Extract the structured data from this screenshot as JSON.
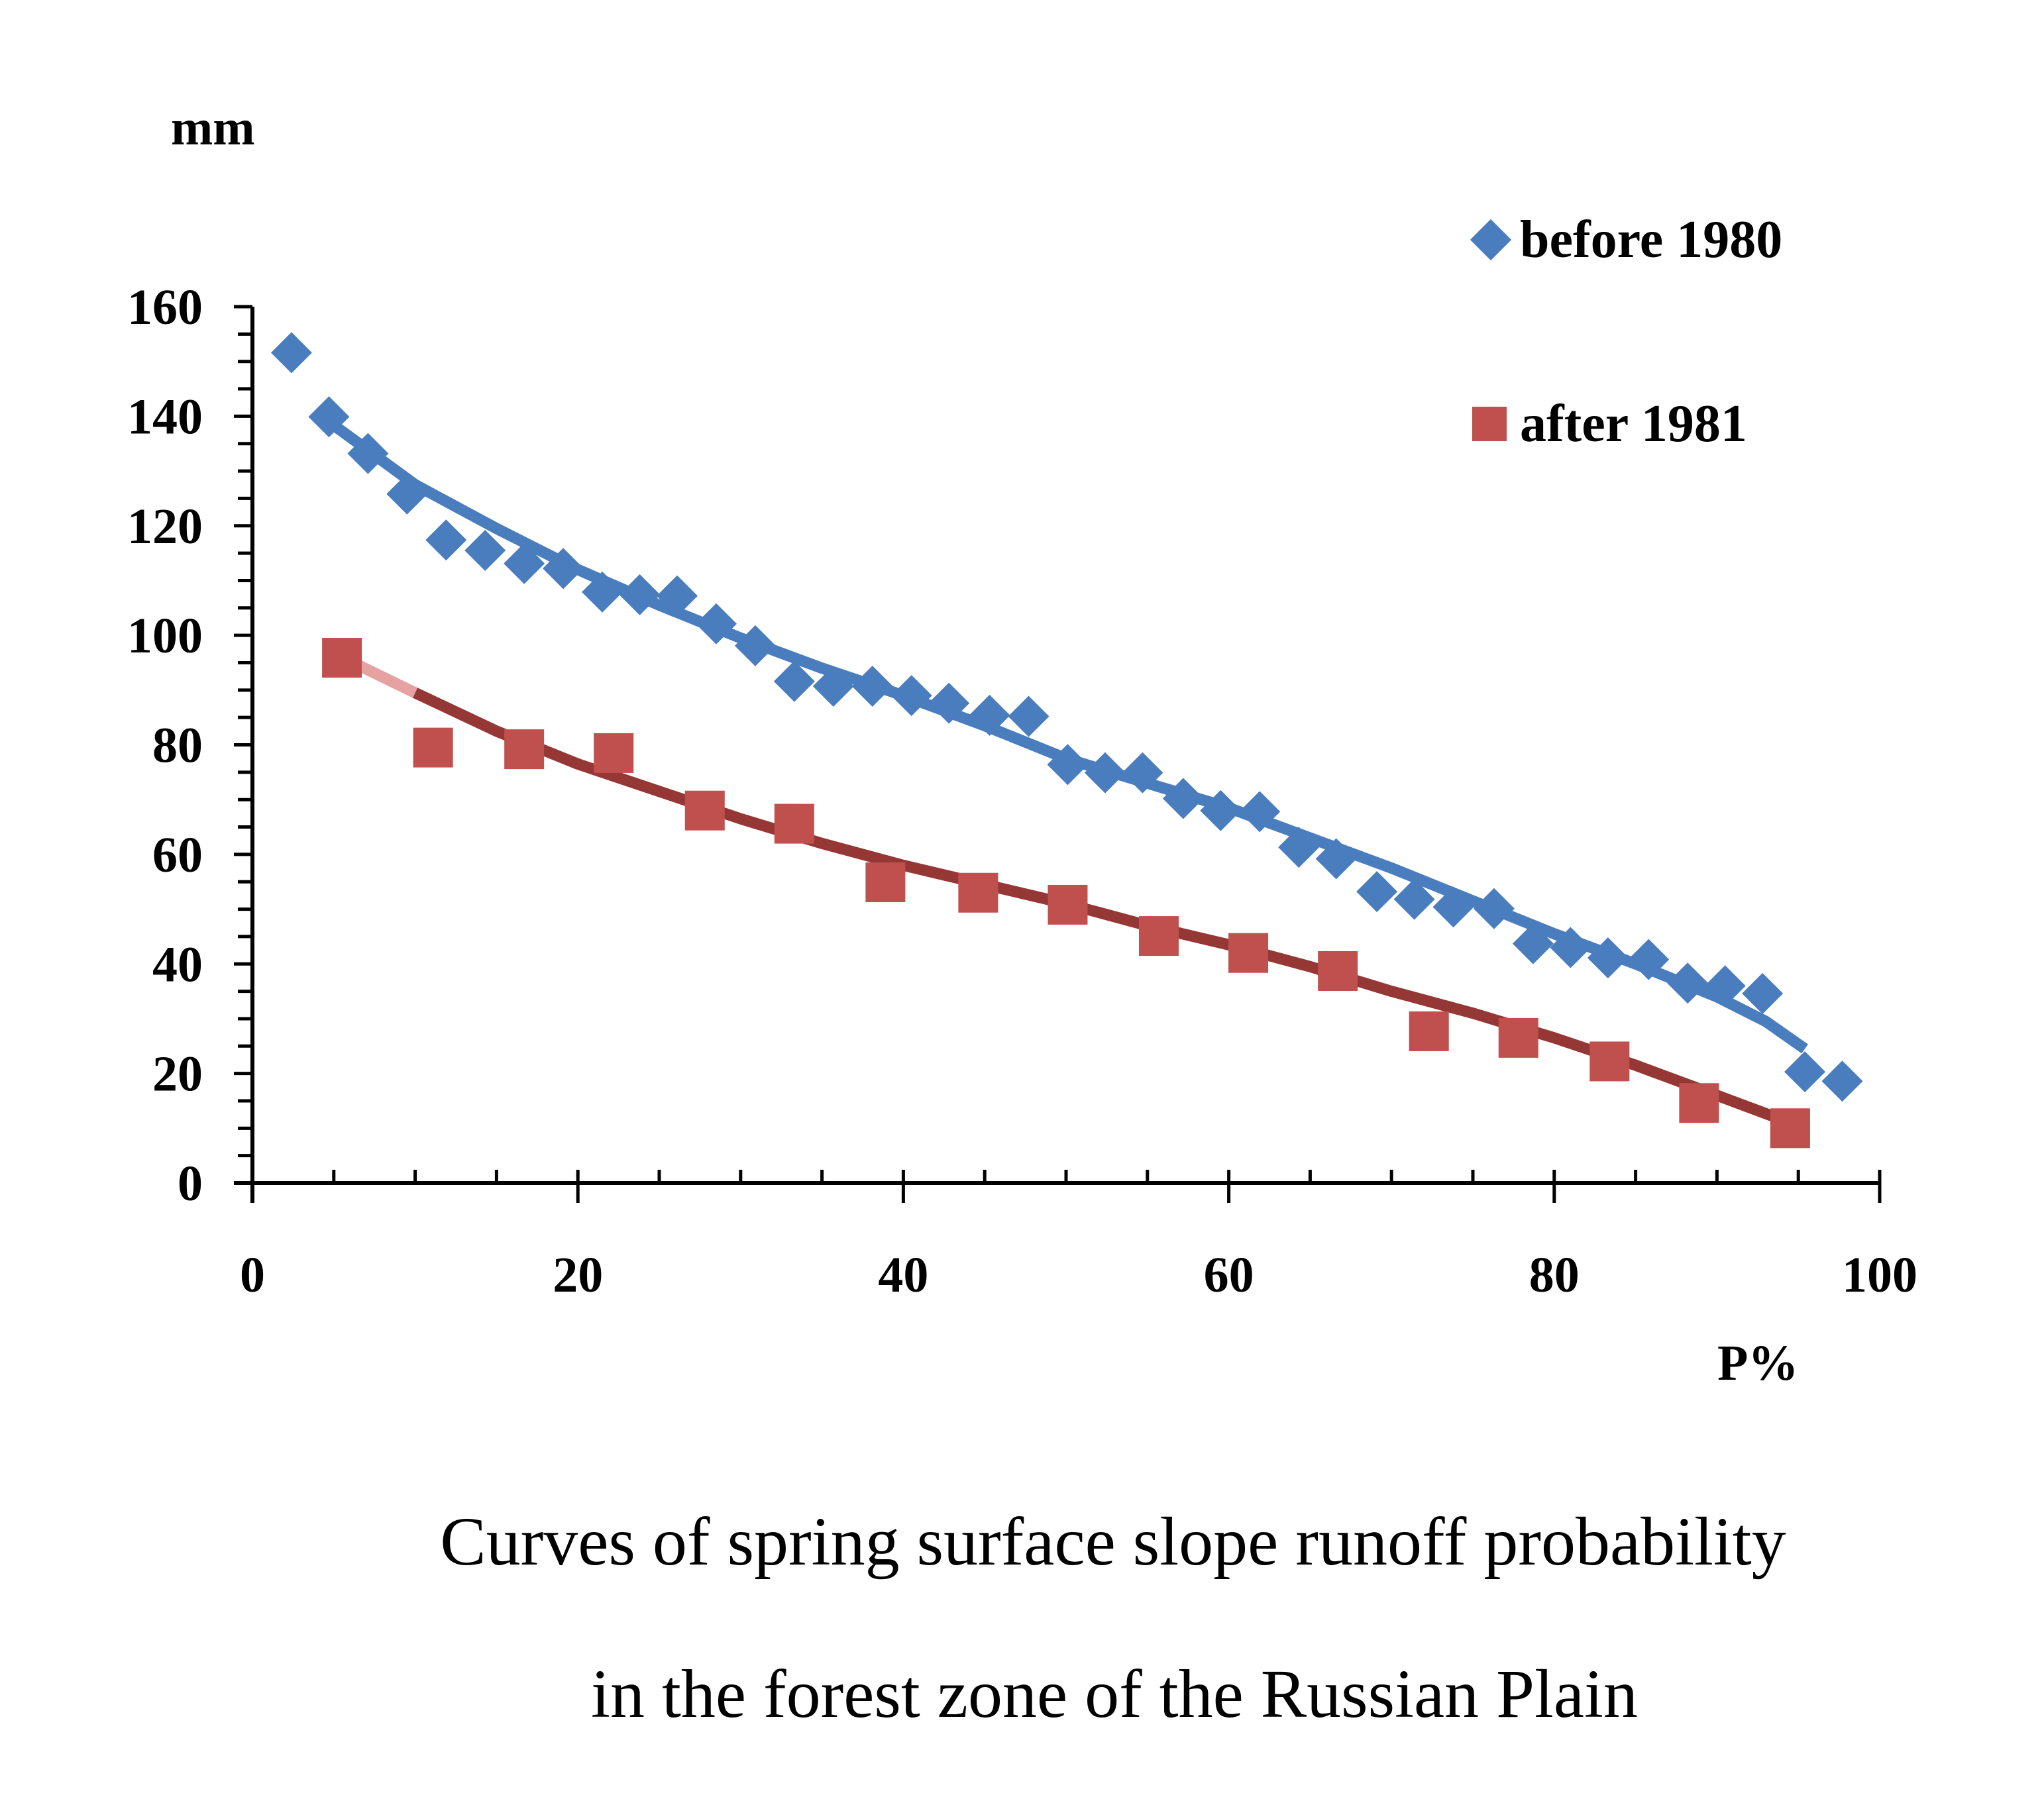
{
  "chart_data": {
    "type": "scatter",
    "title": "Curves of spring surface slope runoff probability in the forest zone of the Russian Plain",
    "caption_lines": [
      "Curves of spring surface slope runoff probability",
      "in the forest zone of the Russian Plain"
    ],
    "xlabel": "P%",
    "ylabel": "mm",
    "xlim": [
      0,
      100
    ],
    "ylim": [
      0,
      160
    ],
    "x_ticks": [
      "0",
      "20",
      "40",
      "60",
      "80",
      "100"
    ],
    "x_tick_values": [
      0,
      20,
      40,
      60,
      80,
      100
    ],
    "y_ticks": [
      "0",
      "20",
      "40",
      "60",
      "80",
      "100",
      "120",
      "140",
      "160"
    ],
    "y_tick_values": [
      0,
      20,
      40,
      60,
      80,
      100,
      120,
      140,
      160
    ],
    "x_minor_step": 5,
    "y_minor_step": 5,
    "grid": false,
    "legend_position": "top-right",
    "series": [
      {
        "name": "before 1980",
        "marker": "diamond",
        "color": "#4a7dbd",
        "x": [
          2.4,
          4.7,
          7.1,
          9.5,
          11.9,
          14.3,
          16.7,
          19.1,
          21.5,
          23.8,
          26.1,
          28.5,
          30.9,
          33.3,
          35.7,
          38.1,
          40.5,
          42.8,
          45.3,
          47.7,
          50.1,
          52.4,
          54.7,
          57.2,
          59.5,
          61.9,
          64.3,
          66.6,
          69.1,
          71.4,
          73.8,
          76.3,
          78.7,
          81.0,
          83.3,
          85.8,
          88.2,
          90.5,
          92.8,
          95.4,
          97.7
        ],
        "y": [
          151.6,
          139.9,
          133.2,
          125.8,
          117.4,
          115.5,
          113.1,
          112.2,
          107.9,
          107.4,
          107.2,
          102.1,
          98.1,
          91.6,
          90.7,
          90.7,
          89.0,
          87.6,
          85.4,
          85.2,
          76.4,
          74.9,
          74.9,
          70.2,
          68.0,
          67.8,
          61.3,
          59.2,
          53.2,
          51.8,
          50.4,
          50.1,
          43.7,
          43.0,
          41.1,
          40.8,
          36.5,
          36.0,
          34.6,
          20.3,
          18.6
        ],
        "trend": {
          "color": "#4a7dbd",
          "x": [
            4.7,
            10,
            15,
            20,
            25,
            30,
            35,
            40,
            45,
            50,
            55,
            60,
            65,
            70,
            75,
            80,
            85,
            90,
            93,
            95.4
          ],
          "y": [
            139.0,
            127.5,
            119.5,
            112.0,
            105.5,
            99.5,
            94.0,
            89.0,
            83.5,
            77.5,
            73.0,
            68.5,
            63.0,
            57.5,
            51.5,
            45.5,
            40.0,
            34.0,
            29.5,
            24.5
          ]
        }
      },
      {
        "name": "after 1981",
        "marker": "square",
        "color": "#c0504d",
        "x": [
          5.5,
          11.1,
          16.7,
          22.2,
          27.8,
          33.3,
          38.9,
          44.6,
          50.1,
          55.7,
          61.2,
          66.7,
          72.3,
          77.8,
          83.4,
          88.9,
          94.5
        ],
        "y": [
          95.9,
          79.5,
          79.2,
          78.5,
          68.0,
          65.6,
          54.9,
          53.0,
          50.8,
          45.1,
          42.0,
          38.7,
          27.7,
          26.5,
          22.2,
          14.6,
          10.0
        ],
        "trend_extrapolated": {
          "color": "#e6a2a0",
          "x": [
            5.5,
            10
          ],
          "y": [
            96.0,
            89.5
          ]
        },
        "trend": {
          "color": "#953735",
          "x": [
            10,
            15,
            20,
            25,
            30,
            35,
            40,
            45,
            50,
            55,
            60,
            65,
            70,
            75,
            80,
            85,
            90,
            94.5
          ],
          "y": [
            89.5,
            82.5,
            76.5,
            71.5,
            66.5,
            62.0,
            58.0,
            54.5,
            51.0,
            47.0,
            43.5,
            39.5,
            35.0,
            31.0,
            26.5,
            21.5,
            16.0,
            11.0
          ]
        }
      }
    ]
  }
}
